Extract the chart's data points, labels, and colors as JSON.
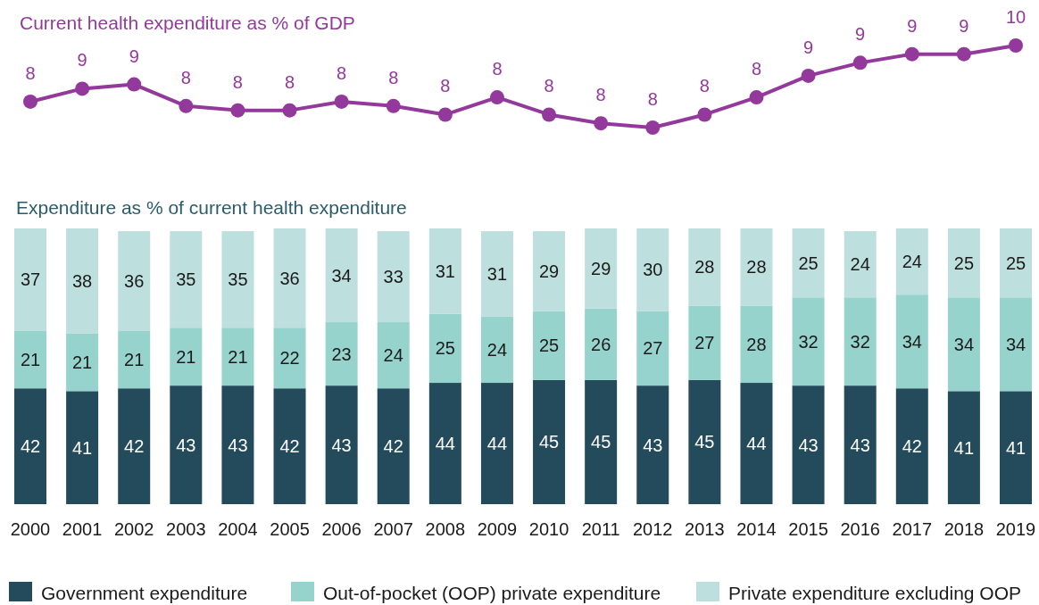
{
  "chart_data": [
    {
      "type": "line",
      "title": "Current health expenditure as % of GDP",
      "values": [
        8.3,
        8.6,
        8.7,
        8.2,
        8.1,
        8.1,
        8.3,
        8.2,
        8.0,
        8.4,
        8.0,
        7.8,
        7.7,
        8.0,
        8.4,
        8.9,
        9.2,
        9.4,
        9.4,
        9.6
      ],
      "value_labels": [
        "8",
        "9",
        "9",
        "8",
        "8",
        "8",
        "8",
        "8",
        "8",
        "8",
        "8",
        "8",
        "8",
        "8",
        "8",
        "9",
        "9",
        "9",
        "9",
        "10"
      ],
      "color": "#93399b",
      "marker": "circle",
      "tick_labels": false
    },
    {
      "type": "bar",
      "title": "Expenditure as % of current health expenditure",
      "categories": [
        "2000",
        "2001",
        "2002",
        "2003",
        "2004",
        "2005",
        "2006",
        "2007",
        "2008",
        "2009",
        "2010",
        "2011",
        "2012",
        "2013",
        "2014",
        "2015",
        "2016",
        "2017",
        "2018",
        "2019"
      ],
      "series": [
        {
          "name": "Government expenditure",
          "color": "#234b5c",
          "values": [
            42,
            41,
            42,
            43,
            43,
            42,
            43,
            42,
            44,
            44,
            45,
            45,
            43,
            45,
            44,
            43,
            43,
            42,
            41,
            41
          ]
        },
        {
          "name": "Out-of-pocket (OOP) private expenditure",
          "color": "#97d3cd",
          "values": [
            21,
            21,
            21,
            21,
            21,
            22,
            23,
            24,
            25,
            24,
            25,
            26,
            27,
            27,
            28,
            32,
            32,
            34,
            34,
            34
          ]
        },
        {
          "name": "Private expenditure excluding OOP",
          "color": "#bde0de",
          "values": [
            37,
            38,
            36,
            35,
            35,
            36,
            34,
            33,
            31,
            31,
            29,
            29,
            30,
            28,
            28,
            25,
            24,
            24,
            25,
            25
          ]
        }
      ],
      "stacked": true,
      "ylim": [
        0,
        100
      ],
      "data_labels": true,
      "tick_labels": "x",
      "legend": "bottom"
    }
  ]
}
